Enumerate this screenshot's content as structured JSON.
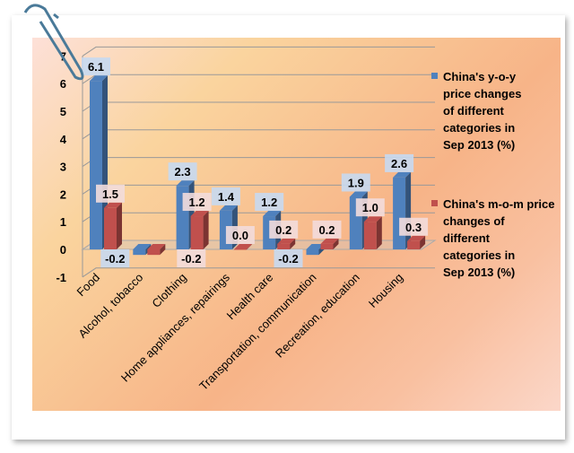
{
  "chart_data": {
    "type": "bar",
    "categories": [
      "Food",
      "Alcohol, tobacco",
      "Clothing",
      "Home appliances, repairings",
      "Health care",
      "Transportation, communication",
      "Recreation, education",
      "Housing"
    ],
    "series": [
      {
        "name": "China's y-o-y price changes of different categories in Sep 2013 (%)",
        "values": [
          6.1,
          -0.2,
          2.3,
          1.4,
          1.2,
          -0.2,
          1.9,
          2.6
        ],
        "color": "#4f81bd"
      },
      {
        "name": "China's m-o-m price changes of different categories in Sep 2013 (%)",
        "values": [
          1.5,
          -0.2,
          1.2,
          0.0,
          0.2,
          0.2,
          1.0,
          0.3
        ],
        "color": "#c0504d"
      }
    ],
    "value_labels": [
      [
        "6.1",
        "-0.2",
        "2.3",
        "1.4",
        "1.2",
        "-0.2",
        "1.9",
        "2.6"
      ],
      [
        "1.5",
        "-0.2",
        "1.2",
        "0.0",
        "0.2",
        "0.2",
        "1.0",
        "0.3"
      ]
    ],
    "yticks": [
      "-1",
      "0",
      "1",
      "2",
      "3",
      "4",
      "5",
      "6",
      "7"
    ],
    "ylim": [
      -1,
      7
    ],
    "legend_lines": [
      [
        "China's y-o-y",
        "price changes",
        "of different",
        "categories in",
        "Sep 2013 (%)"
      ],
      [
        "China's m-o-m price",
        "changes of",
        "different",
        "categories in",
        "Sep 2013 (%)"
      ]
    ],
    "legend_position": "right",
    "grid": true
  }
}
